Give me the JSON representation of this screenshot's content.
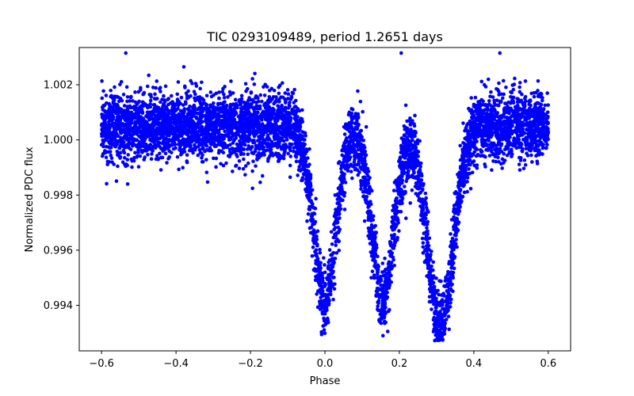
{
  "chart_data": {
    "type": "scatter",
    "title": "TIC 0293109489, period 1.2651 days",
    "xlabel": "Phase",
    "ylabel": "Normalized PDC flux",
    "xlim": [
      -0.66,
      0.66
    ],
    "ylim": [
      0.99235,
      1.00335
    ],
    "xticks": [
      -0.6,
      -0.4,
      -0.2,
      0.0,
      0.2,
      0.4,
      0.6
    ],
    "xtick_labels": [
      "−0.6",
      "−0.4",
      "−0.2",
      "0.0",
      "0.2",
      "0.4",
      "0.6"
    ],
    "yticks": [
      0.994,
      0.996,
      0.998,
      1.0,
      1.002
    ],
    "ytick_labels": [
      "0.994",
      "0.996",
      "0.998",
      "1.000",
      "1.002"
    ],
    "grid": false,
    "marker_color": "#0000ff",
    "series": [
      {
        "name": "flux",
        "phase_range": [
          -0.6,
          0.6
        ],
        "baseline": 1.0005,
        "scatter": 0.0006,
        "dips": [
          {
            "center": 0.0,
            "depth": 0.0063,
            "width": 0.03
          },
          {
            "center": 0.155,
            "depth": 0.0063,
            "width": 0.03
          },
          {
            "center": 0.31,
            "depth": 0.0072,
            "width": 0.035
          }
        ],
        "min_flux": 0.9927,
        "max_flux": 1.00315,
        "sample_points": [
          {
            "x": -0.535,
            "y": 1.00315
          },
          {
            "x": 0.205,
            "y": 1.00315
          },
          {
            "x": 0.47,
            "y": 1.00315
          },
          {
            "x": 0.31,
            "y": 0.99275
          },
          {
            "x": 0.0,
            "y": 0.994
          },
          {
            "x": 0.16,
            "y": 0.9936
          },
          {
            "x": -0.53,
            "y": 0.9984
          }
        ]
      }
    ]
  }
}
